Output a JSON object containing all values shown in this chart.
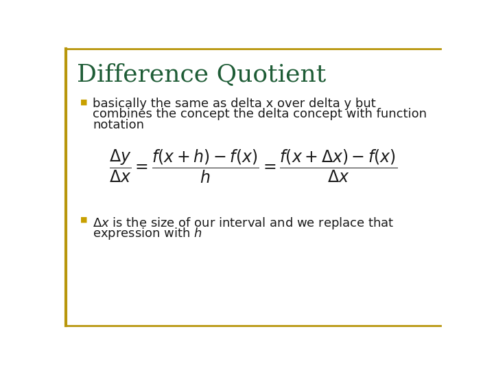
{
  "title": "Difference Quotient",
  "title_color": "#1e5c36",
  "title_fontsize": 26,
  "bg_color": "#ffffff",
  "border_color": "#b8960c",
  "bullet_color": "#c8a000",
  "bullet1_line1": "basically the same as delta x over delta y but",
  "bullet1_line2": "combines the concept the delta concept with function",
  "bullet1_line3": "notation",
  "bullet2_line1": "is the size of our interval and we replace that",
  "bullet2_line2": "expression with ",
  "formula_fontsize": 17,
  "text_fontsize": 13,
  "text_color": "#1a1a1a"
}
